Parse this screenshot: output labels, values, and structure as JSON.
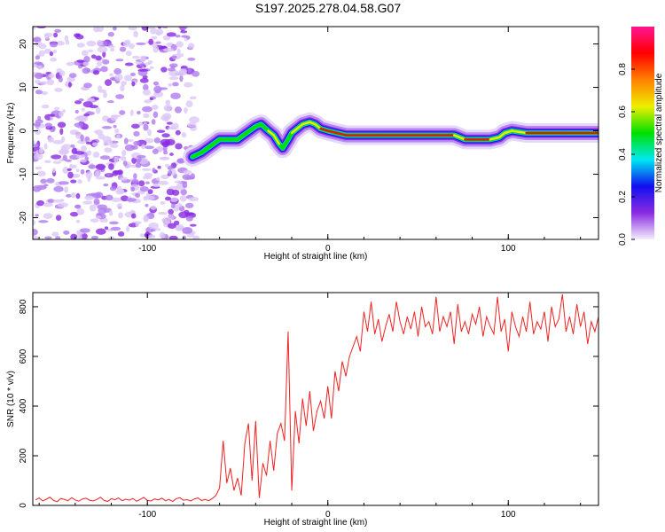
{
  "title": "S197.2025.278.04.58.G07",
  "chart_data": [
    {
      "type": "heatmap",
      "title": "S197.2025.278.04.58.G07",
      "xlabel": "Height of straight line (km)",
      "ylabel": "Frequency (Hz)",
      "xlim": [
        -163.5,
        150
      ],
      "ylim": [
        -25,
        24
      ],
      "xticks": [
        -100,
        0,
        100
      ],
      "xtick_labels": [
        "-100",
        "0",
        "100"
      ],
      "yticks": [
        20,
        10,
        0,
        -10,
        -20
      ],
      "ytick_labels": [
        "20",
        "10",
        "0",
        "-10",
        "-20"
      ],
      "noise_region_km": [
        -163.5,
        -73
      ],
      "ridge": {
        "height_km": [
          -75,
          -70,
          -65,
          -60,
          -55,
          -50,
          -45,
          -40,
          -37,
          -33,
          -30,
          -27,
          -25,
          -22,
          -20,
          -17,
          -14,
          -10,
          -7,
          -4,
          0,
          5,
          10,
          30,
          60,
          70,
          73,
          76,
          80,
          90,
          95,
          98,
          102,
          110,
          130,
          150
        ],
        "frequency_hz": [
          -6,
          -5,
          -3.5,
          -2,
          -2,
          -2,
          -0.5,
          1,
          1.5,
          0,
          -1,
          -3,
          -4,
          -2,
          -0.5,
          0.5,
          1.5,
          2,
          1.5,
          0.5,
          0,
          -0.5,
          -1,
          -1,
          -1,
          -1,
          -1.5,
          -2,
          -2,
          -2,
          -1.5,
          -0.5,
          0,
          -0.5,
          -0.5,
          -0.5
        ],
        "amplitude": [
          0.35,
          0.4,
          0.45,
          0.55,
          0.6,
          0.55,
          0.5,
          0.5,
          0.55,
          0.6,
          0.9,
          0.4,
          0.35,
          0.5,
          0.6,
          0.7,
          0.8,
          0.75,
          0.7,
          0.8,
          0.85,
          0.85,
          0.9,
          0.95,
          0.95,
          0.9,
          0.6,
          0.85,
          0.9,
          0.9,
          0.7,
          0.6,
          0.7,
          0.9,
          0.9,
          0.9
        ]
      },
      "colorbar": {
        "label": "Normalized spectral amplitude",
        "range": [
          0,
          1
        ],
        "ticks": [
          "0.0",
          "0.2",
          "0.4",
          "0.6",
          "0.8"
        ],
        "colors": [
          "#f4eefc",
          "#8a2be2",
          "#1010ee",
          "#00e8f0",
          "#00e000",
          "#eeee00",
          "#ff8000",
          "#ff0000",
          "#ff1493"
        ]
      }
    },
    {
      "type": "line",
      "xlabel": "Height of straight line (km)",
      "ylabel": "SNR (10 * v/v)",
      "xlim": [
        -163.5,
        150
      ],
      "ylim": [
        0,
        857
      ],
      "xticks": [
        -100,
        0,
        100
      ],
      "xtick_labels": [
        "-100",
        "0",
        "100"
      ],
      "yticks": [
        0,
        200,
        400,
        600,
        800
      ],
      "ytick_labels": [
        "0",
        "200",
        "400",
        "600",
        "800"
      ],
      "color": "#ee2222",
      "series": [
        {
          "name": "SNR",
          "x_start": -162,
          "x_step": 2,
          "values": [
            22,
            30,
            18,
            25,
            33,
            20,
            15,
            28,
            24,
            19,
            31,
            22,
            17,
            26,
            29,
            21,
            18,
            24,
            33,
            20,
            16,
            27,
            23,
            30,
            19,
            25,
            21,
            28,
            17,
            24,
            32,
            20,
            18,
            26,
            22,
            29,
            19,
            24,
            16,
            27,
            31,
            21,
            23,
            18,
            26,
            30,
            20,
            24,
            19,
            28,
            40,
            70,
            260,
            90,
            150,
            60,
            110,
            40,
            250,
            330,
            100,
            340,
            30,
            170,
            120,
            260,
            140,
            290,
            330,
            260,
            700,
            60,
            380,
            250,
            430,
            320,
            460,
            300,
            380,
            420,
            350,
            480,
            350,
            540,
            460,
            580,
            520,
            600,
            640,
            680,
            620,
            780,
            700,
            820,
            690,
            750,
            660,
            720,
            770,
            700,
            820,
            740,
            690,
            760,
            710,
            780,
            680,
            800,
            720,
            740,
            690,
            840,
            700,
            760,
            720,
            780,
            650,
            810,
            700,
            740,
            690,
            770,
            730,
            800,
            680,
            760,
            720,
            690,
            840,
            700,
            750,
            620,
            780,
            720,
            680,
            760,
            700,
            820,
            690,
            740,
            710,
            780,
            660,
            800,
            720,
            750,
            850,
            700,
            760,
            690,
            810,
            720,
            780,
            650,
            740,
            700,
            760
          ]
        }
      ]
    }
  ]
}
